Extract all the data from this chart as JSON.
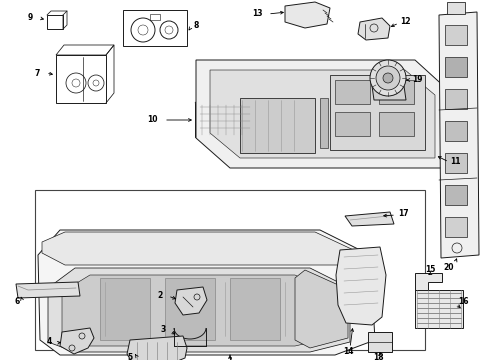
{
  "bg": "#ffffff",
  "lc": "#1a1a1a",
  "lw": 0.7,
  "fontsize": 5.5,
  "fig_w": 4.89,
  "fig_h": 3.6,
  "dpi": 100
}
